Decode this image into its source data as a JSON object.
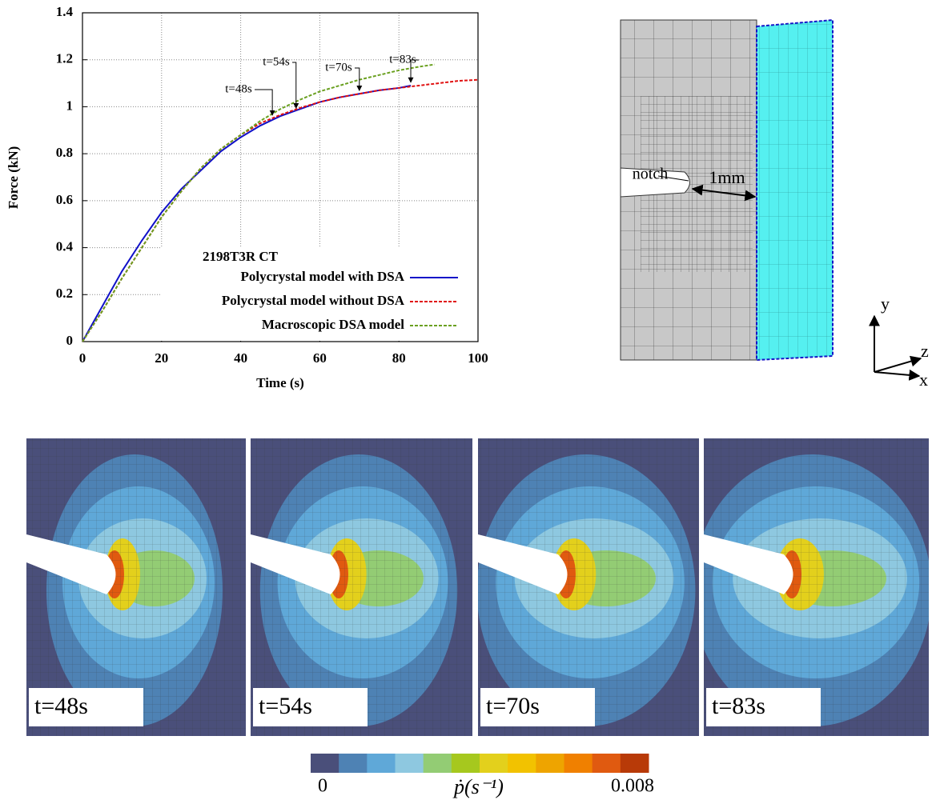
{
  "chart_data": {
    "type": "line",
    "xlabel": "Time (s)",
    "ylabel": "Force (kN)",
    "xlim": [
      0,
      100
    ],
    "xticks": [
      0,
      20,
      40,
      60,
      80,
      100
    ],
    "ylim": [
      0,
      1.4
    ],
    "yticks": [
      0,
      0.2,
      0.4,
      0.6,
      0.8,
      1,
      1.2,
      1.4
    ],
    "grid": true,
    "legend_title": "2198T3R CT",
    "legend": "lower right",
    "series": [
      {
        "name": "Polycrystal model with DSA",
        "color": "#1010c8",
        "style": "solid",
        "x": [
          0,
          5,
          10,
          15,
          20,
          25,
          30,
          35,
          40,
          45,
          50,
          55,
          60,
          65,
          70,
          75,
          80,
          83
        ],
        "values": [
          0,
          0.15,
          0.3,
          0.43,
          0.55,
          0.65,
          0.73,
          0.81,
          0.87,
          0.92,
          0.96,
          0.99,
          1.02,
          1.04,
          1.055,
          1.07,
          1.08,
          1.09
        ]
      },
      {
        "name": "Polycrystal model without DSA",
        "color": "#e01010",
        "style": "dashed",
        "x": [
          0,
          5,
          10,
          15,
          20,
          25,
          30,
          35,
          40,
          45,
          50,
          55,
          60,
          65,
          70,
          75,
          80,
          85,
          90,
          95,
          100
        ],
        "values": [
          0,
          0.13,
          0.27,
          0.4,
          0.53,
          0.64,
          0.74,
          0.82,
          0.88,
          0.93,
          0.965,
          0.995,
          1.02,
          1.04,
          1.055,
          1.07,
          1.08,
          1.09,
          1.1,
          1.11,
          1.115
        ]
      },
      {
        "name": "Macroscopic DSA model",
        "color": "#6aa020",
        "style": "dashed",
        "x": [
          0,
          5,
          10,
          15,
          20,
          25,
          30,
          35,
          40,
          45,
          50,
          55,
          60,
          65,
          70,
          75,
          80,
          85,
          89
        ],
        "values": [
          0,
          0.13,
          0.27,
          0.4,
          0.53,
          0.64,
          0.74,
          0.82,
          0.88,
          0.94,
          0.99,
          1.03,
          1.065,
          1.09,
          1.115,
          1.135,
          1.155,
          1.17,
          1.18
        ]
      }
    ],
    "annotations": [
      {
        "text": "t=48s",
        "x": 48,
        "y": 0.95
      },
      {
        "text": "t=54s",
        "x": 54,
        "y": 0.98
      },
      {
        "text": "t=70s",
        "x": 70,
        "y": 1.055
      },
      {
        "text": "t=83s",
        "x": 83,
        "y": 1.09
      }
    ]
  },
  "mesh": {
    "notch_label": "notch",
    "length_label": "1mm",
    "axes": [
      "y",
      "z",
      "x"
    ]
  },
  "panels": [
    "t=48s",
    "t=54s",
    "t=70s",
    "t=83s"
  ],
  "colorbar": {
    "label": "ṗ(s⁻¹)",
    "lim": [
      0,
      0.008
    ],
    "colors": [
      "#4a4f7a",
      "#4e82b4",
      "#5fa8d8",
      "#8ec8e0",
      "#93cc74",
      "#a6c81e",
      "#e3d01c",
      "#f2c200",
      "#eea400",
      "#f08000",
      "#e05a10",
      "#b83a08"
    ]
  }
}
